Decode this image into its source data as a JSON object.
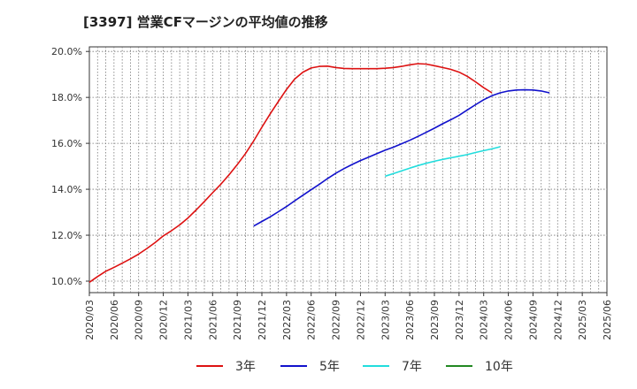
{
  "chart_data": {
    "type": "line",
    "title": "[3397]  営業CFマージンの平均値の推移",
    "xlabel": "",
    "ylabel": "",
    "y_tick_labels": [
      "10.0%",
      "12.0%",
      "14.0%",
      "16.0%",
      "18.0%",
      "20.0%"
    ],
    "y_ticks": [
      10,
      12,
      14,
      16,
      18,
      20
    ],
    "ylim": [
      9.5,
      20.2
    ],
    "x_tick_labels": [
      "2020/03",
      "2020/06",
      "2020/09",
      "2020/12",
      "2021/03",
      "2021/06",
      "2021/09",
      "2021/12",
      "2022/03",
      "2022/06",
      "2022/09",
      "2022/12",
      "2023/03",
      "2023/06",
      "2023/09",
      "2023/12",
      "2024/03",
      "2024/06",
      "2024/09",
      "2024/12",
      "2025/03",
      "2025/06"
    ],
    "grid": true,
    "legend_position": "bottom",
    "series": [
      {
        "name": "3年",
        "color": "#dd1111",
        "start_index": 0,
        "values": [
          9.95,
          10.2,
          10.43,
          10.6,
          10.78,
          10.97,
          11.18,
          11.42,
          11.68,
          11.97,
          12.2,
          12.45,
          12.75,
          13.1,
          13.47,
          13.85,
          14.22,
          14.63,
          15.07,
          15.55,
          16.1,
          16.7,
          17.28,
          17.82,
          18.35,
          18.8,
          19.1,
          19.28,
          19.35,
          19.36,
          19.3,
          19.26,
          19.25,
          19.25,
          19.25,
          19.25,
          19.27,
          19.3,
          19.35,
          19.42,
          19.47,
          19.45,
          19.38,
          19.3,
          19.22,
          19.1,
          18.92,
          18.68,
          18.42,
          18.2
        ]
      },
      {
        "name": "5年",
        "color": "#1111cc",
        "start_index": 20,
        "values": [
          12.4,
          12.6,
          12.8,
          13.02,
          13.25,
          13.5,
          13.74,
          13.98,
          14.22,
          14.47,
          14.7,
          14.9,
          15.08,
          15.25,
          15.4,
          15.55,
          15.7,
          15.83,
          15.98,
          16.13,
          16.3,
          16.48,
          16.66,
          16.85,
          17.03,
          17.22,
          17.45,
          17.68,
          17.9,
          18.07,
          18.2,
          18.28,
          18.32,
          18.33,
          18.32,
          18.28,
          18.2
        ]
      },
      {
        "name": "7年",
        "color": "#22dddd",
        "start_index": 36,
        "values": [
          14.57,
          14.68,
          14.8,
          14.92,
          15.03,
          15.13,
          15.22,
          15.3,
          15.37,
          15.44,
          15.51,
          15.6,
          15.68,
          15.76,
          15.85
        ]
      },
      {
        "name": "10年",
        "color": "#228822",
        "start_index": 0,
        "values": []
      }
    ]
  }
}
